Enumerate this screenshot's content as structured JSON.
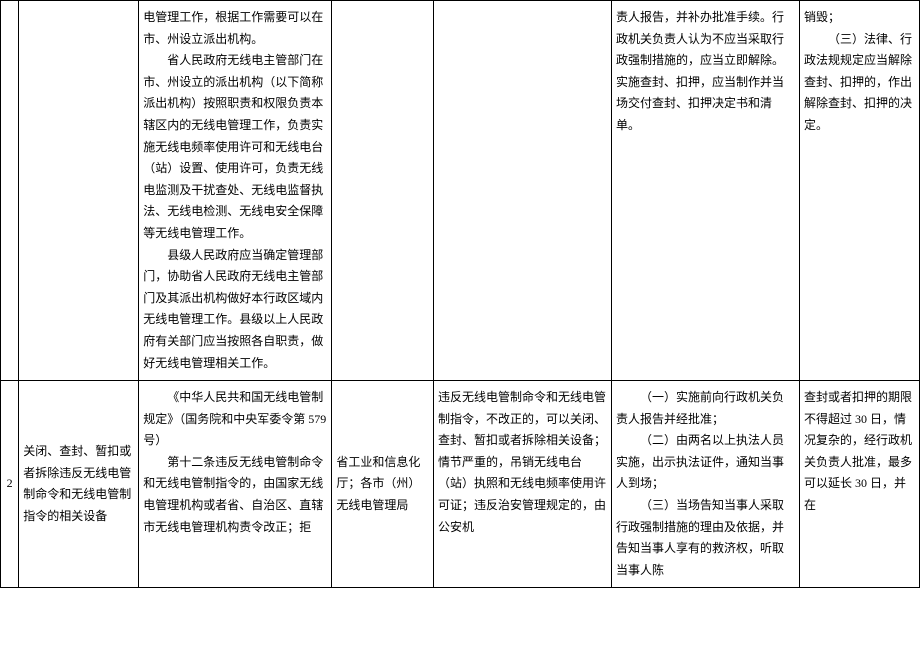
{
  "table": {
    "rows": [
      {
        "num": "",
        "name": "",
        "basis": {
          "p1": "电管理工作，根据工作需要可以在市、州设立派出机构。",
          "p2": "省人民政府无线电主管部门在市、州设立的派出机构（以下简称派出机构）按照职责和权限负责本辖区内的无线电管理工作，负责实施无线电频率使用许可和无线电台（站）设置、使用许可，负责无线电监测及干扰查处、无线电监督执法、无线电检测、无线电安全保障等无线电管理工作。",
          "p3": "县级人民政府应当确定管理部门，协助省人民政府无线电主管部门及其派出机构做好本行政区域内无线电管理工作。县级以上人民政府有关部门应当按照各自职责，做好无线电管理相关工作。"
        },
        "dept": "",
        "scope": "",
        "procedure": {
          "p1": "责人报告，并补办批准手续。行政机关负责人认为不应当采取行政强制措施的，应当立即解除。",
          "p2": "实施查封、扣押，应当制作并当场交付查封、扣押决定书和清单。"
        },
        "deadline": {
          "p1": "销毁；",
          "p2": "（三）法律、行政法规规定应当解除查封、扣押的，作出解除查封、扣押的决定。"
        }
      },
      {
        "num": "2",
        "name": "关闭、查封、暂扣或者拆除违反无线电管制命令和无线电管制指令的相关设备",
        "basis": {
          "p1": "《中华人民共和国无线电管制规定》（国务院和中央军委令第 579 号）",
          "p2": "第十二条违反无线电管制命令和无线电管制指令的，由国家无线电管理机构或者省、自治区、直辖市无线电管理机构责令改正；拒"
        },
        "dept": "省工业和信息化厅；各市（州）无线电管理局",
        "scope": "违反无线电管制命令和无线电管制指令，不改正的，可以关闭、查封、暂扣或者拆除相关设备；情节严重的，吊销无线电台（站）执照和无线电频率使用许可证；违反治安管理规定的，由公安机",
        "procedure": {
          "p1": "（一）实施前向行政机关负责人报告并经批准；",
          "p2": "（二）由两名以上执法人员实施，出示执法证件，通知当事人到场；",
          "p3": "（三）当场告知当事人采取行政强制措施的理由及依据，并告知当事人享有的救济权，听取当事人陈"
        },
        "deadline": "查封或者扣押的期限不得超过 30 日，情况复杂的，经行政机关负责人批准，最多可以延长 30 日，并在"
      }
    ]
  }
}
